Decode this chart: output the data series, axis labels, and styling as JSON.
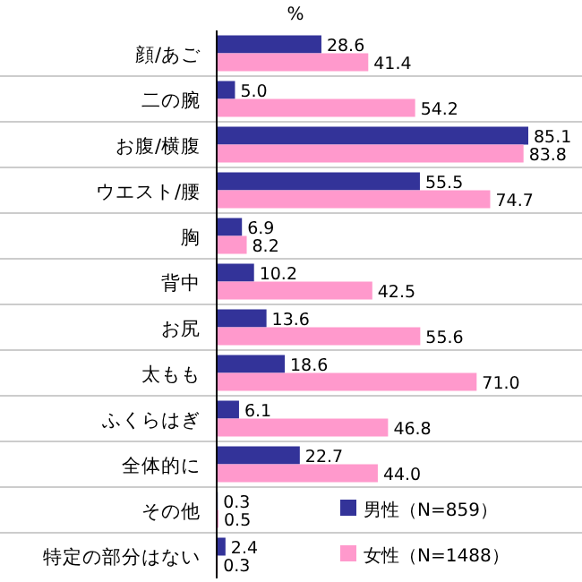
{
  "chart_data": {
    "type": "bar",
    "orientation": "horizontal",
    "xlabel": "%",
    "grid": "y",
    "legend": "bottom right",
    "categories": [
      "顔/あご",
      "二の腕",
      "お腹/横腹",
      "ウエスト/腰",
      "胸",
      "背中",
      "お尻",
      "太もも",
      "ふくらはぎ",
      "全体的に",
      "その他",
      "特定の部分はない"
    ],
    "series": [
      {
        "name": "男性（N=859）",
        "color": "#333399",
        "values": [
          28.6,
          5.0,
          85.1,
          55.5,
          6.9,
          10.2,
          13.6,
          18.6,
          6.1,
          22.7,
          0.3,
          2.4
        ],
        "value_labels": [
          "28.6",
          "5.0",
          "85.1",
          "55.5",
          "6.9",
          "10.2",
          "13.6",
          "18.6",
          "6.1",
          "22.7",
          "0.3",
          "2.4"
        ]
      },
      {
        "name": "女性（N=1488）",
        "color": "#ff99cc",
        "values": [
          41.4,
          54.2,
          83.8,
          74.7,
          8.2,
          42.5,
          55.6,
          71.0,
          46.8,
          44.0,
          0.5,
          0.3
        ],
        "value_labels": [
          "41.4",
          "54.2",
          "83.8",
          "74.7",
          "8.2",
          "42.5",
          "55.6",
          "71.0",
          "46.8",
          "44.0",
          "0.5",
          "0.3"
        ]
      }
    ]
  }
}
